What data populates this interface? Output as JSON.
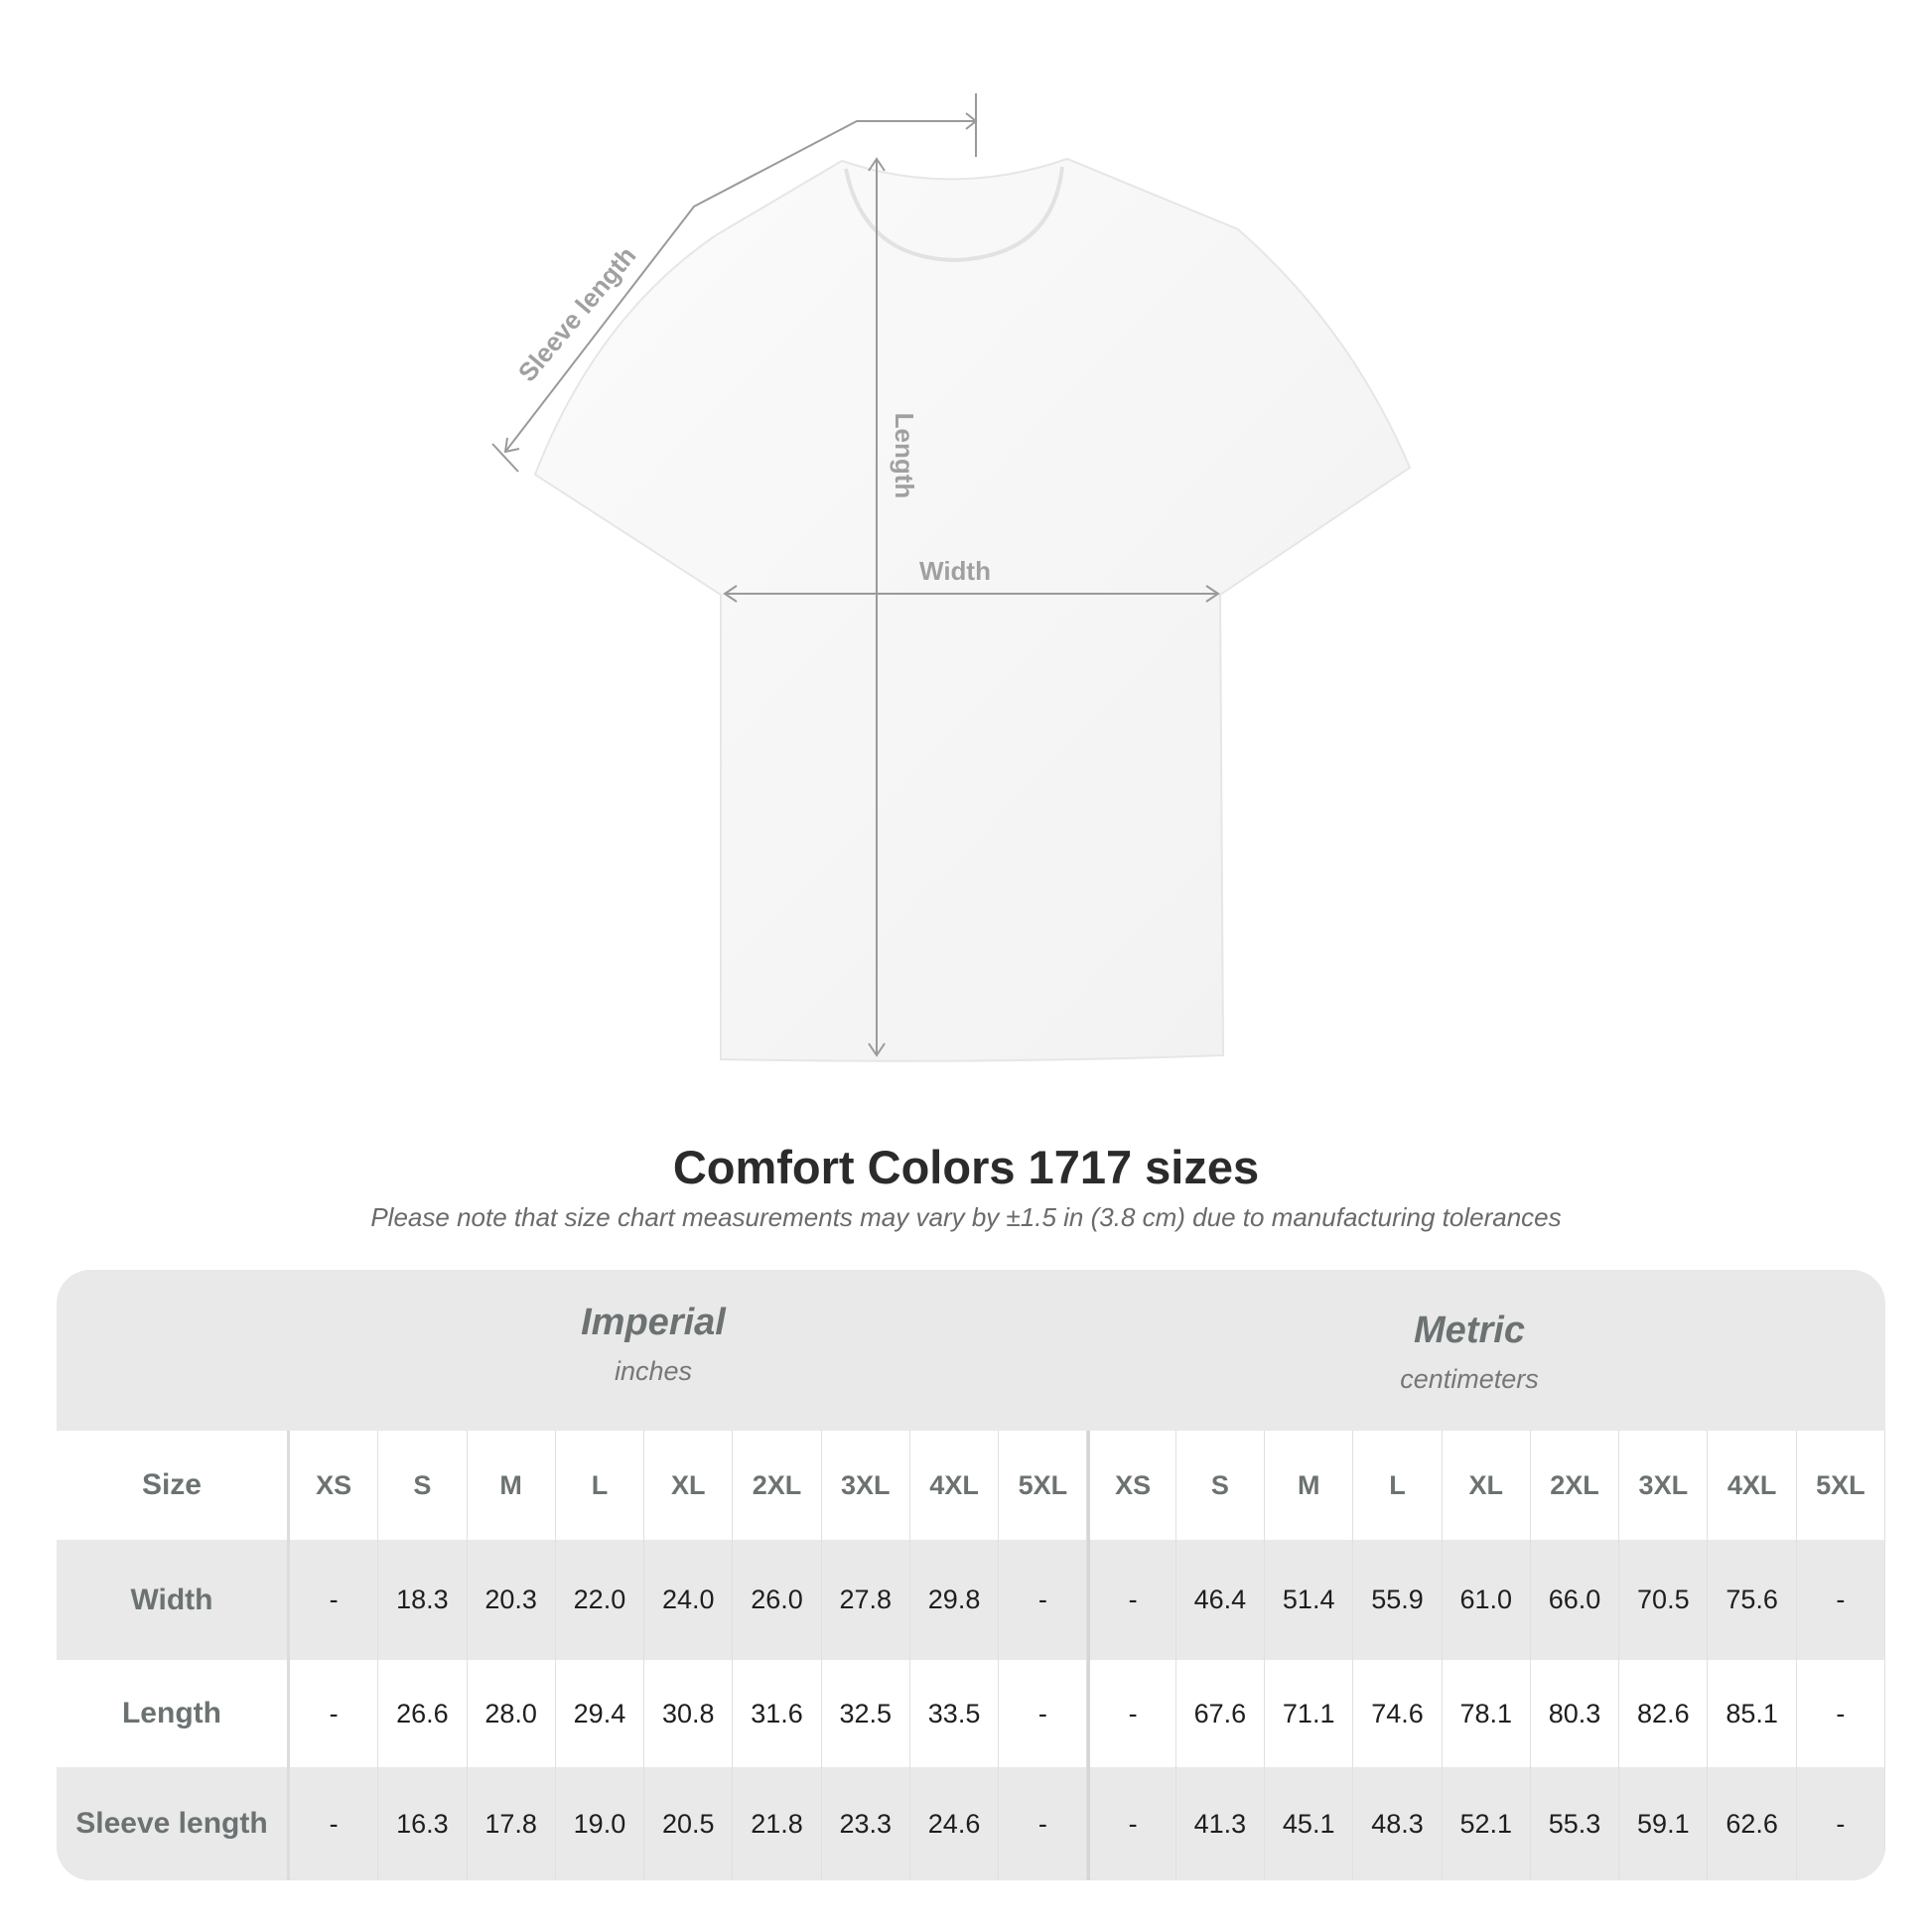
{
  "diagram": {
    "labels": {
      "sleeve": "Sleeve length",
      "length": "Length",
      "width": "Width"
    },
    "line_color": "#9a9a9a"
  },
  "title": "Comfort Colors 1717 sizes",
  "note": "Please note that size chart measurements may vary by ±1.5 in (3.8 cm) due to manufacturing tolerances",
  "table": {
    "imperial": {
      "title": "Imperial",
      "unit": "inches"
    },
    "metric": {
      "title": "Metric",
      "unit": "centimeters"
    },
    "size_label": "Size",
    "sizes": [
      "XS",
      "S",
      "M",
      "L",
      "XL",
      "2XL",
      "3XL",
      "4XL",
      "5XL"
    ],
    "rows": [
      {
        "label": "Width",
        "imperial": [
          "-",
          "18.3",
          "20.3",
          "22.0",
          "24.0",
          "26.0",
          "27.8",
          "29.8",
          "-"
        ],
        "metric": [
          "-",
          "46.4",
          "51.4",
          "55.9",
          "61.0",
          "66.0",
          "70.5",
          "75.6",
          "-"
        ]
      },
      {
        "label": "Length",
        "imperial": [
          "-",
          "26.6",
          "28.0",
          "29.4",
          "30.8",
          "31.6",
          "32.5",
          "33.5",
          "-"
        ],
        "metric": [
          "-",
          "67.6",
          "71.1",
          "74.6",
          "78.1",
          "80.3",
          "82.6",
          "85.1",
          "-"
        ]
      },
      {
        "label": "Sleeve length",
        "imperial": [
          "-",
          "16.3",
          "17.8",
          "19.0",
          "20.5",
          "21.8",
          "23.3",
          "24.6",
          "-"
        ],
        "metric": [
          "-",
          "41.3",
          "45.1",
          "48.3",
          "52.1",
          "55.3",
          "59.1",
          "62.6",
          "-"
        ]
      }
    ]
  }
}
